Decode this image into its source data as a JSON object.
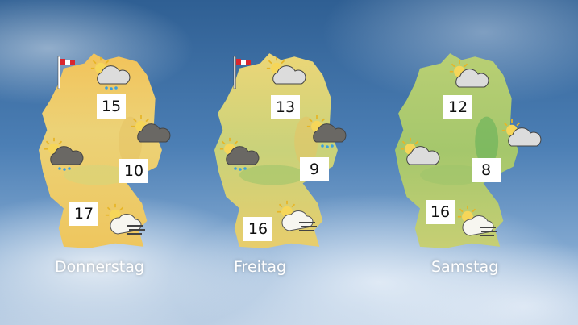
{
  "days": [
    {
      "label": "Donnerstag",
      "temps": {
        "north": "15",
        "east": "10",
        "south": "17"
      },
      "icons": {
        "north": "sun-cloud-showers-icon",
        "east": "sun-dark-cloud-icon",
        "west": "sun-dark-cloud-showers-icon",
        "south": "sun-fog-icon",
        "flag": "wind-warning-flag-icon"
      }
    },
    {
      "label": "Freitag",
      "temps": {
        "north": "13",
        "east": "9",
        "south": "16"
      },
      "icons": {
        "north": "sun-cloud-icon",
        "east": "sun-dark-cloud-showers-icon",
        "west": "sun-dark-cloud-showers-icon",
        "south": "sun-fog-icon",
        "flag": "wind-warning-flag-icon"
      }
    },
    {
      "label": "Samstag",
      "temps": {
        "north": "12",
        "east": "8",
        "south": "16"
      },
      "icons": {
        "north": "sun-cloud-icon",
        "east": "sun-cloud-icon",
        "west": "sun-cloud-icon",
        "south": "sun-fog-icon"
      }
    }
  ],
  "colors": {
    "warm": "#f0c15a",
    "mild": "#e8d77a",
    "cool": "#a9c86e",
    "green": "#6fb55a",
    "flag_red": "#d9262e"
  }
}
